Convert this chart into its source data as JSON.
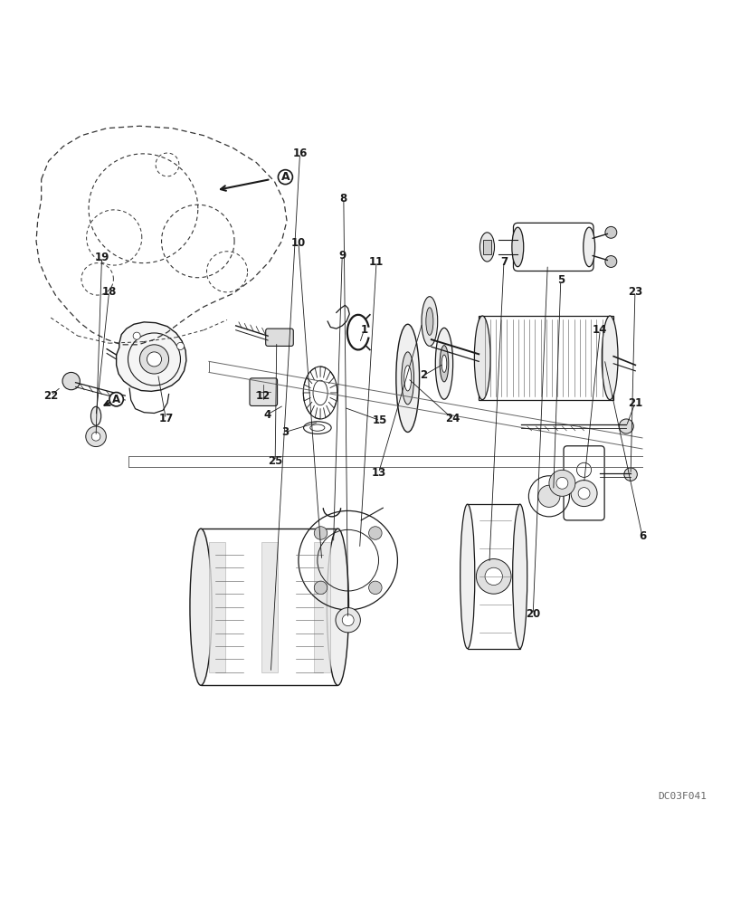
{
  "background_color": "#ffffff",
  "watermark": "DC03F041",
  "color_main": "#1a1a1a",
  "color_dash": "#333333"
}
